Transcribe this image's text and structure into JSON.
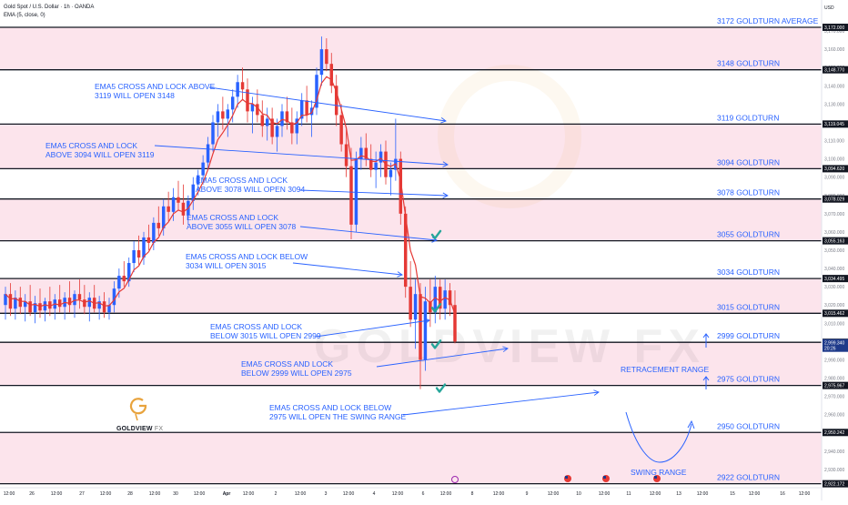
{
  "header": {
    "symbol_line": "Gold Spot / U.S. Dollar · 1h · OANDA",
    "indicator_line": "EMA (5, close, 0)"
  },
  "brand": {
    "name": "GOLDVIEW",
    "suffix": "FX",
    "watermark": "GOLDVIEW FX",
    "gold_color": "#e8a33d"
  },
  "colors": {
    "band": "#fce4ec",
    "level_line": "#131722",
    "annotation": "#2962ff",
    "candle_up": "#2962ff",
    "candle_down": "#e53935",
    "ema": "#e53935",
    "ema_highlight": "#f4a261",
    "check": "#26a69a"
  },
  "chart_data": {
    "type": "candlestick",
    "instrument": "Gold Spot / U.S. Dollar",
    "timeframe": "1h",
    "source": "OANDA",
    "y_axis_title": "USD",
    "ylim": [
      2920,
      3176
    ],
    "y_ticks": [
      2930,
      2940,
      2950,
      2960,
      2970,
      2980,
      2990,
      3000,
      3010,
      3020,
      3030,
      3040,
      3050,
      3060,
      3070,
      3080,
      3090,
      3100,
      3110,
      3120,
      3130,
      3140,
      3150,
      3160,
      3170
    ],
    "y_tick_labels": [
      "2,930.000",
      "2,940.000",
      "2,950.000",
      "2,960.000",
      "2,970.000",
      "2,980.000",
      "2,990.000",
      "3,000.000",
      "3,010.000",
      "3,020.000",
      "3,030.000",
      "3,040.000",
      "3,050.000",
      "3,060.000",
      "3,070.000",
      "3,080.000",
      "3,090.000",
      "3,100.000",
      "3,110.000",
      "3,120.000",
      "3,130.000",
      "3,140.000",
      "3,150.000",
      "3,160.000",
      "3,170.000"
    ],
    "price_tags": [
      {
        "value": 3172,
        "label": "3,172.000"
      },
      {
        "value": 3148.77,
        "label": "3,148.770"
      },
      {
        "value": 3119.045,
        "label": "3,119.045"
      },
      {
        "value": 3094.62,
        "label": "3,094.620"
      },
      {
        "value": 3078.029,
        "label": "3,078.029"
      },
      {
        "value": 3055.163,
        "label": "3,055.163"
      },
      {
        "value": 3034.495,
        "label": "3,034.495"
      },
      {
        "value": 3015.462,
        "label": "3,015.462"
      },
      {
        "value": 2999.605,
        "label": "2,999.605"
      },
      {
        "value": 2999.34,
        "label": "2,999.340",
        "sub": "20:26",
        "current": true
      },
      {
        "value": 2975.967,
        "label": "2,975.967"
      },
      {
        "value": 2950.242,
        "label": "2,950.242"
      },
      {
        "value": 2922.172,
        "label": "2,922.172"
      }
    ],
    "levels": [
      {
        "value": 3172,
        "label": "3172 GOLDTURN AVERAGE"
      },
      {
        "value": 3148.77,
        "label": "3148 GOLDTURN"
      },
      {
        "value": 3119.045,
        "label": "3119 GOLDTURN"
      },
      {
        "value": 3094.62,
        "label": "3094 GOLDTURN"
      },
      {
        "value": 3078.029,
        "label": "3078 GOLDTURN"
      },
      {
        "value": 3055.163,
        "label": "3055 GOLDTURN"
      },
      {
        "value": 3034.495,
        "label": "3034 GOLDTURN"
      },
      {
        "value": 3015.462,
        "label": "3015 GOLDTURN"
      },
      {
        "value": 2999.605,
        "label": "2999 GOLDTURN"
      },
      {
        "value": 2975.967,
        "label": "2975 GOLDTURN"
      },
      {
        "value": 2950.242,
        "label": "2950 GOLDTURN"
      },
      {
        "value": 2922.172,
        "label": "2922 GOLDTURN"
      }
    ],
    "bands": [
      [
        3148.77,
        3172
      ],
      [
        3094.62,
        3119.045
      ],
      [
        3055.163,
        3078.029
      ],
      [
        3015.462,
        3034.495
      ],
      [
        2975.967,
        2999.605
      ],
      [
        2922.172,
        2950.242
      ]
    ],
    "x_ticks": [
      "12:00",
      "26",
      "12:00",
      "27",
      "12:00",
      "28",
      "12:00",
      "30",
      "12:00",
      "Apr",
      "12:00",
      "2",
      "12:00",
      "3",
      "12:00",
      "4",
      "12:00",
      "6",
      "12:00",
      "8",
      "12:00",
      "9",
      "12:00",
      "10",
      "12:00",
      "11",
      "12:00",
      "13",
      "12:00",
      "15",
      "12:00",
      "16",
      "12:00"
    ],
    "candles_ohlc": [
      [
        3020,
        3030,
        3012,
        3026
      ],
      [
        3026,
        3032,
        3014,
        3018
      ],
      [
        3018,
        3028,
        3012,
        3024
      ],
      [
        3024,
        3030,
        3015,
        3019
      ],
      [
        3019,
        3026,
        3011,
        3022
      ],
      [
        3022,
        3031,
        3014,
        3016
      ],
      [
        3016,
        3025,
        3010,
        3021
      ],
      [
        3021,
        3029,
        3013,
        3017
      ],
      [
        3017,
        3024,
        3011,
        3022
      ],
      [
        3022,
        3030,
        3014,
        3018
      ],
      [
        3018,
        3026,
        3012,
        3023
      ],
      [
        3023,
        3031,
        3016,
        3019
      ],
      [
        3019,
        3027,
        3012,
        3024
      ],
      [
        3024,
        3033,
        3016,
        3020
      ],
      [
        3020,
        3028,
        3013,
        3026
      ],
      [
        3026,
        3034,
        3018,
        3023
      ],
      [
        3023,
        3031,
        3015,
        3019
      ],
      [
        3019,
        3027,
        3011,
        3024
      ],
      [
        3024,
        3031,
        3016,
        3018
      ],
      [
        3018,
        3025,
        3012,
        3022
      ],
      [
        3022,
        3027,
        3013,
        3016
      ],
      [
        3016,
        3024,
        3012,
        3020
      ],
      [
        3020,
        3033,
        3016,
        3029
      ],
      [
        3029,
        3040,
        3024,
        3036
      ],
      [
        3036,
        3044,
        3030,
        3033
      ],
      [
        3033,
        3046,
        3030,
        3043
      ],
      [
        3043,
        3055,
        3038,
        3050
      ],
      [
        3050,
        3058,
        3042,
        3046
      ],
      [
        3046,
        3060,
        3042,
        3057
      ],
      [
        3057,
        3064,
        3050,
        3054
      ],
      [
        3054,
        3068,
        3050,
        3065
      ],
      [
        3065,
        3074,
        3058,
        3062
      ],
      [
        3062,
        3078,
        3058,
        3074
      ],
      [
        3074,
        3082,
        3066,
        3071
      ],
      [
        3071,
        3084,
        3066,
        3079
      ],
      [
        3079,
        3088,
        3072,
        3076
      ],
      [
        3076,
        3086,
        3064,
        3069
      ],
      [
        3069,
        3080,
        3064,
        3077
      ],
      [
        3077,
        3090,
        3072,
        3086
      ],
      [
        3086,
        3094,
        3080,
        3091
      ],
      [
        3091,
        3102,
        3086,
        3098
      ],
      [
        3098,
        3112,
        3094,
        3108
      ],
      [
        3108,
        3124,
        3104,
        3120
      ],
      [
        3120,
        3130,
        3112,
        3126
      ],
      [
        3126,
        3134,
        3116,
        3122
      ],
      [
        3122,
        3130,
        3112,
        3127
      ],
      [
        3127,
        3138,
        3120,
        3134
      ],
      [
        3134,
        3146,
        3128,
        3142
      ],
      [
        3142,
        3150,
        3132,
        3138
      ],
      [
        3138,
        3144,
        3120,
        3126
      ],
      [
        3126,
        3134,
        3114,
        3130
      ],
      [
        3130,
        3138,
        3120,
        3124
      ],
      [
        3124,
        3132,
        3112,
        3118
      ],
      [
        3118,
        3128,
        3110,
        3122
      ],
      [
        3122,
        3128,
        3108,
        3112
      ],
      [
        3112,
        3122,
        3104,
        3118
      ],
      [
        3118,
        3130,
        3112,
        3126
      ],
      [
        3126,
        3134,
        3116,
        3120
      ],
      [
        3120,
        3128,
        3108,
        3114
      ],
      [
        3114,
        3126,
        3108,
        3122
      ],
      [
        3122,
        3136,
        3118,
        3132
      ],
      [
        3132,
        3140,
        3120,
        3124
      ],
      [
        3124,
        3132,
        3112,
        3128
      ],
      [
        3128,
        3150,
        3124,
        3146
      ],
      [
        3146,
        3167,
        3140,
        3160
      ],
      [
        3160,
        3166,
        3148,
        3152
      ],
      [
        3152,
        3158,
        3136,
        3140
      ],
      [
        3140,
        3146,
        3118,
        3124
      ],
      [
        3124,
        3130,
        3104,
        3108
      ],
      [
        3108,
        3116,
        3090,
        3096
      ],
      [
        3096,
        3106,
        3056,
        3064
      ],
      [
        3064,
        3104,
        3060,
        3100
      ],
      [
        3100,
        3112,
        3094,
        3106
      ],
      [
        3106,
        3114,
        3096,
        3100
      ],
      [
        3100,
        3108,
        3090,
        3094
      ],
      [
        3094,
        3104,
        3084,
        3098
      ],
      [
        3098,
        3108,
        3090,
        3104
      ],
      [
        3104,
        3110,
        3086,
        3090
      ],
      [
        3090,
        3098,
        3080,
        3094
      ],
      [
        3094,
        3122,
        3088,
        3100
      ],
      [
        3100,
        3104,
        3064,
        3070
      ],
      [
        3070,
        3074,
        3024,
        3030
      ],
      [
        3030,
        3044,
        3008,
        3012
      ],
      [
        3012,
        3034,
        2996,
        3026
      ],
      [
        3026,
        3032,
        2974,
        2990
      ],
      [
        2990,
        3030,
        2984,
        3022
      ],
      [
        3022,
        3034,
        3008,
        3016
      ],
      [
        3016,
        3036,
        3010,
        3030
      ],
      [
        3030,
        3034,
        3012,
        3018
      ],
      [
        3018,
        3034,
        3012,
        3028
      ],
      [
        3028,
        3032,
        3014,
        3020
      ],
      [
        3020,
        3028,
        2999,
        3000
      ]
    ],
    "annotations": [
      {
        "lines": [
          "EMA5 CROSS AND LOCK ABOVE",
          "3119 WILL OPEN 3148"
        ]
      },
      {
        "lines": [
          "EMA5 CROSS AND LOCK",
          "ABOVE 3094 WILL OPEN 3119"
        ]
      },
      {
        "lines": [
          "EMA5 CROSS AND LOCK",
          "ABOVE 3078 WILL OPEN 3094"
        ]
      },
      {
        "lines": [
          "EMA5 CROSS AND LOCK",
          "ABOVE 3055 WILL OPEN 3078"
        ]
      },
      {
        "lines": [
          "EMA5 CROSS AND LOCK BELOW",
          "3034 WILL OPEN 3015"
        ]
      },
      {
        "lines": [
          "EMA5 CROSS AND LOCK",
          "BELOW 3015 WILL OPEN 2999"
        ]
      },
      {
        "lines": [
          "EMA5 CROSS AND LOCK",
          "BELOW 2999 WILL OPEN 2975"
        ]
      },
      {
        "lines": [
          "EMA5 CROSS AND LOCK BELOW",
          "2975 WILL OPEN THE SWING RANGE"
        ]
      }
    ],
    "range_labels": [
      "RETRACEMENT RANGE",
      "SWING RANGE"
    ],
    "check_marks": [
      3058,
      3018,
      2998,
      2974
    ],
    "grid": false
  }
}
